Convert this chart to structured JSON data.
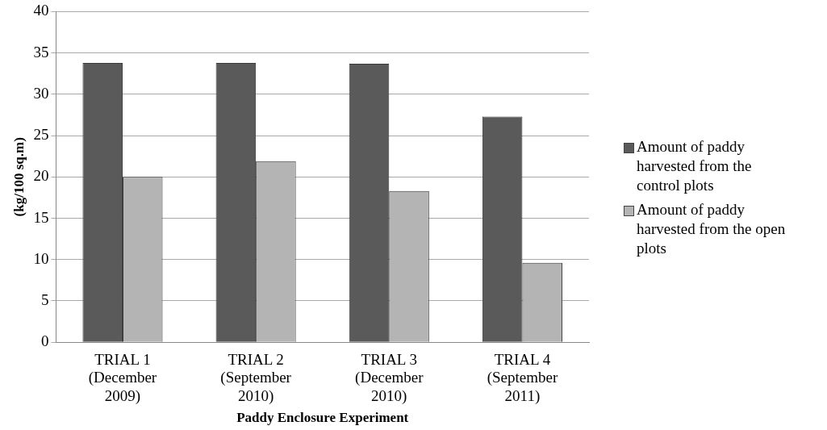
{
  "chart_data": {
    "type": "bar",
    "xlabel": "Paddy Enclosure Experiment",
    "ylabel": "(kg/100 sq.m)",
    "categories": [
      "TRIAL 1 (December 2009)",
      "TRIAL 2 (September 2010)",
      "TRIAL 3 (December 2010)",
      "TRIAL 4 (September 2011)"
    ],
    "series": [
      {
        "name": "Amount of paddy harvested from the control plots",
        "color": "#5a5a5a",
        "values": [
          33.8,
          33.8,
          33.7,
          27.3
        ]
      },
      {
        "name": "Amount of paddy harvested from the open plots",
        "color": "#b4b4b4",
        "values": [
          20.0,
          21.9,
          18.3,
          9.6
        ]
      }
    ],
    "ylim": [
      0,
      40
    ],
    "yticks": [
      0,
      5,
      10,
      15,
      20,
      25,
      30,
      35,
      40
    ],
    "grid": "y",
    "legend": "right"
  }
}
